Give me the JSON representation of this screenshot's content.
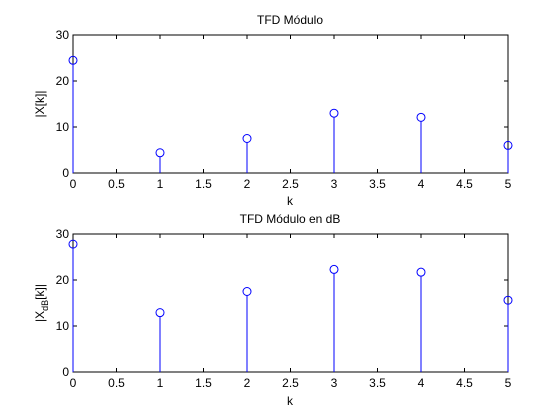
{
  "figure": {
    "background": "#ffffff",
    "stem_color": "#0000ff",
    "axes_color": "#000000"
  },
  "chart_data": [
    {
      "type": "stem",
      "title": "TFD Módulo",
      "xlabel": "k",
      "ylabel": "|X[k]|",
      "xlim": [
        0,
        5
      ],
      "ylim": [
        0,
        30
      ],
      "xticks": [
        "0",
        "0.5",
        "1",
        "1.5",
        "2",
        "2.5",
        "3",
        "3.5",
        "4",
        "4.5",
        "5"
      ],
      "yticks": [
        "0",
        "10",
        "20",
        "30"
      ],
      "grid": false,
      "x": [
        0,
        1,
        2,
        3,
        4,
        5
      ],
      "y": [
        24.5,
        4.4,
        7.5,
        13.0,
        12.1,
        6.0
      ]
    },
    {
      "type": "stem",
      "title": "TFD Módulo en dB",
      "xlabel": "k",
      "ylabel_main": "|X",
      "ylabel_sub": "dB",
      "ylabel_tail": "[k]|",
      "xlim": [
        0,
        5
      ],
      "ylim": [
        0,
        30
      ],
      "xticks": [
        "0",
        "0.5",
        "1",
        "1.5",
        "2",
        "2.5",
        "3",
        "3.5",
        "4",
        "4.5",
        "5"
      ],
      "yticks": [
        "0",
        "10",
        "20",
        "30"
      ],
      "grid": false,
      "x": [
        0,
        1,
        2,
        3,
        4,
        5
      ],
      "y": [
        27.8,
        12.9,
        17.5,
        22.3,
        21.7,
        15.6
      ]
    }
  ]
}
